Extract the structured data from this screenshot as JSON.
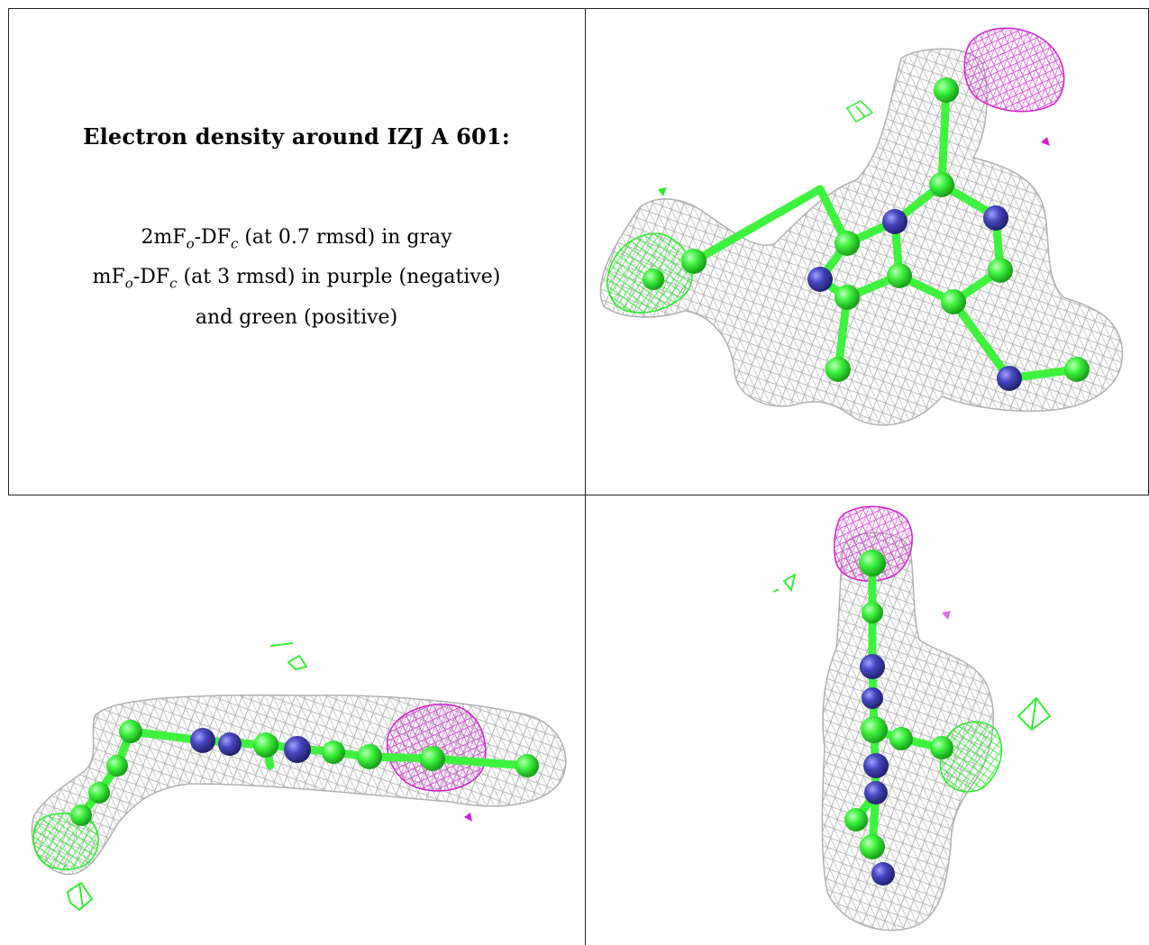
{
  "title": "Electron density around IZJ A 601:",
  "legend": {
    "line1": {
      "a": "2mF",
      "o": "o",
      "b": "-DF",
      "c": "c",
      "rest": " (at 0.7 rmsd) in gray"
    },
    "line2": {
      "a": "mF",
      "o": "o",
      "b": "-DF",
      "c": "c",
      "rest": " (at 3 rmsd) in purple (negative)"
    },
    "line3": "and green (positive)"
  },
  "colors": {
    "map_2fofc": "#a8a8a8",
    "map_negative": "#d21ed2",
    "map_positive": "#22ee22",
    "carbon": "#3ef23e",
    "nitrogen": "#3c3cb4"
  },
  "panels": [
    {
      "name": "density-view-top-right",
      "description": ""
    },
    {
      "name": "density-view-bottom-left",
      "description": ""
    },
    {
      "name": "density-view-bottom-right",
      "description": ""
    }
  ]
}
